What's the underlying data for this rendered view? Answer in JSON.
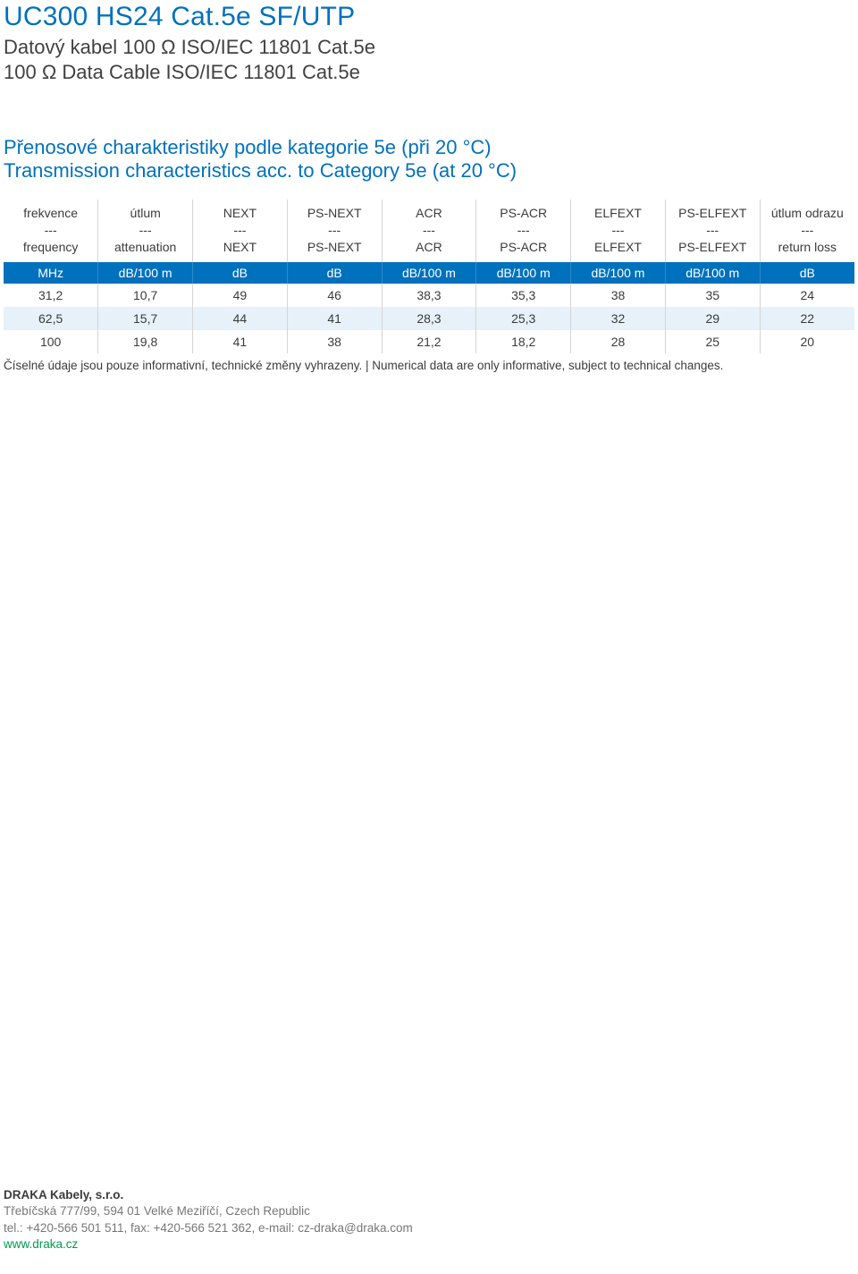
{
  "header": {
    "title": "UC300 HS24 Cat.5e SF/UTP",
    "subtitle_cz": "Datový kabel 100 Ω ISO/IEC 11801 Cat.5e",
    "subtitle_en": "100 Ω Data Cable ISO/IEC 11801 Cat.5e"
  },
  "section": {
    "heading_cz": "Přenosové charakteristiky podle kategorie 5e (při 20 °C)",
    "heading_en": "Transmission characteristics acc. to Category 5e (at 20 °C)"
  },
  "table": {
    "colors": {
      "accent": "#0071bc",
      "row_alt": "#e6f1f9",
      "border": "#d5d5d5",
      "text": "#3b3b3b",
      "web_green": "#009a4e"
    },
    "columns": [
      {
        "cz": "frekvence",
        "sep": "---",
        "en": "frequency",
        "unit": "MHz"
      },
      {
        "cz": "útlum",
        "sep": "---",
        "en": "attenuation",
        "unit": "dB/100 m"
      },
      {
        "cz": "NEXT",
        "sep": "---",
        "en": "NEXT",
        "unit": "dB"
      },
      {
        "cz": "PS-NEXT",
        "sep": "---",
        "en": "PS-NEXT",
        "unit": "dB"
      },
      {
        "cz": "ACR",
        "sep": "---",
        "en": "ACR",
        "unit": "dB/100 m"
      },
      {
        "cz": "PS-ACR",
        "sep": "---",
        "en": "PS-ACR",
        "unit": "dB/100 m"
      },
      {
        "cz": "ELFEXT",
        "sep": "---",
        "en": "ELFEXT",
        "unit": "dB/100 m"
      },
      {
        "cz": "PS-ELFEXT",
        "sep": "---",
        "en": "PS-ELFEXT",
        "unit": "dB/100 m"
      },
      {
        "cz": "útlum odrazu",
        "sep": "---",
        "en": "return loss",
        "unit": "dB"
      }
    ],
    "rows": [
      [
        "31,2",
        "10,7",
        "49",
        "46",
        "38,3",
        "35,3",
        "38",
        "35",
        "24"
      ],
      [
        "62,5",
        "15,7",
        "44",
        "41",
        "28,3",
        "25,3",
        "32",
        "29",
        "22"
      ],
      [
        "100",
        "19,8",
        "41",
        "38",
        "21,2",
        "18,2",
        "28",
        "25",
        "20"
      ]
    ]
  },
  "footnote": "Číselné údaje jsou pouze informativní, technické změny vyhrazeny. | Numerical data are only informative, subject to technical changes.",
  "footer": {
    "company": "DRAKA Kabely, s.r.o.",
    "address": "Třebíčská 777/99, 594 01 Velké Meziříčí, Czech Republic",
    "contact": "tel.: +420-566 501 511, fax: +420-566 521 362, e-mail: cz-draka@draka.com",
    "web": "www.draka.cz"
  }
}
